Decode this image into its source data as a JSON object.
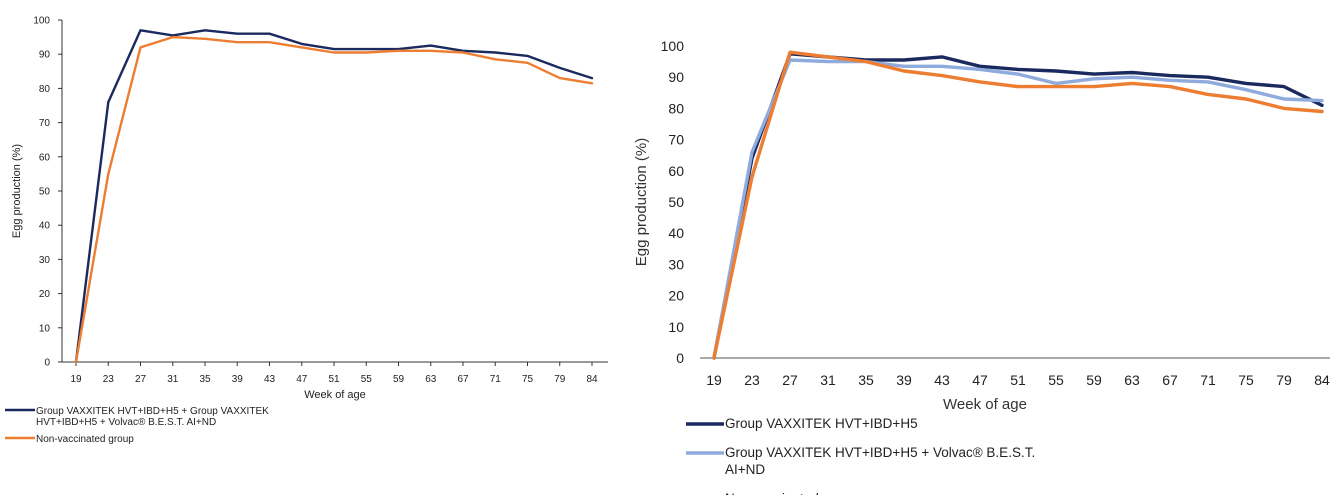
{
  "chart_data": [
    {
      "type": "line",
      "xlabel": "Week of age",
      "ylabel": "Egg production (%)",
      "ylim": [
        0,
        100
      ],
      "yticks": [
        0,
        10,
        20,
        30,
        40,
        50,
        60,
        70,
        80,
        90,
        100
      ],
      "categories": [
        "19",
        "23",
        "27",
        "31",
        "35",
        "39",
        "43",
        "47",
        "51",
        "55",
        "59",
        "63",
        "67",
        "71",
        "75",
        "79",
        "84"
      ],
      "legend_position": "bottom-left",
      "series": [
        {
          "name": "Group VAXXITEK HVT+IBD+H5 + Group VAXXITEK HVT+IBD+H5 + Volvac® B.E.S.T. AI+ND",
          "name_lines": [
            "Group VAXXITEK HVT+IBD+H5 + Group VAXXITEK",
            "HVT+IBD+H5 + Volvac® B.E.S.T. AI+ND"
          ],
          "color": "#1a2a5e",
          "values": [
            0,
            76,
            97,
            95.5,
            97,
            96,
            96,
            93,
            91.5,
            91.5,
            91.5,
            92.5,
            91,
            90.5,
            89.5,
            86,
            83
          ]
        },
        {
          "name": "Non-vaccinated group",
          "name_lines": [
            "Non-vaccinated group"
          ],
          "color": "#ed7d31",
          "values": [
            0,
            55,
            92,
            95,
            94.5,
            93.5,
            93.5,
            92,
            90.5,
            90.5,
            91,
            91,
            90.5,
            88.5,
            87.5,
            83,
            81.5
          ]
        }
      ]
    },
    {
      "type": "line",
      "xlabel": "Week of age",
      "ylabel": "Egg production (%)",
      "ylim": [
        0,
        100
      ],
      "yticks": [
        0,
        10,
        20,
        30,
        40,
        50,
        60,
        70,
        80,
        90,
        100
      ],
      "categories": [
        "19",
        "23",
        "27",
        "31",
        "35",
        "39",
        "43",
        "47",
        "51",
        "55",
        "59",
        "63",
        "67",
        "71",
        "75",
        "79",
        "84"
      ],
      "legend_position": "bottom-left",
      "series": [
        {
          "name": "Group VAXXITEK HVT+IBD+H5",
          "name_lines": [
            "Group VAXXITEK HVT+IBD+H5"
          ],
          "color": "#1a2a5e",
          "values": [
            0,
            64,
            97.5,
            96.5,
            95.5,
            95.5,
            96.5,
            93.5,
            92.5,
            92,
            91,
            91.5,
            90.5,
            90,
            88,
            87,
            81
          ]
        },
        {
          "name": "Group VAXXITEK HVT+IBD+H5 + Volvac® B.E.S.T. AI+ND",
          "name_lines": [
            "Group VAXXITEK HVT+IBD+H5 + Volvac® B.E.S.T.",
            "AI+ND"
          ],
          "color": "#8faadc",
          "values": [
            0,
            66,
            95.5,
            95,
            95,
            93.5,
            93.5,
            92.5,
            91,
            88,
            89.5,
            90,
            89,
            88.5,
            86,
            83,
            82.5
          ]
        },
        {
          "name": "Non-vaccinated group",
          "name_lines": [
            "Non-vaccinated group"
          ],
          "color": "#ed7d31",
          "values": [
            0,
            58,
            98,
            96.5,
            95,
            92,
            90.5,
            88.5,
            87,
            87,
            87,
            88,
            87,
            84.5,
            83,
            80,
            79
          ]
        }
      ]
    }
  ]
}
